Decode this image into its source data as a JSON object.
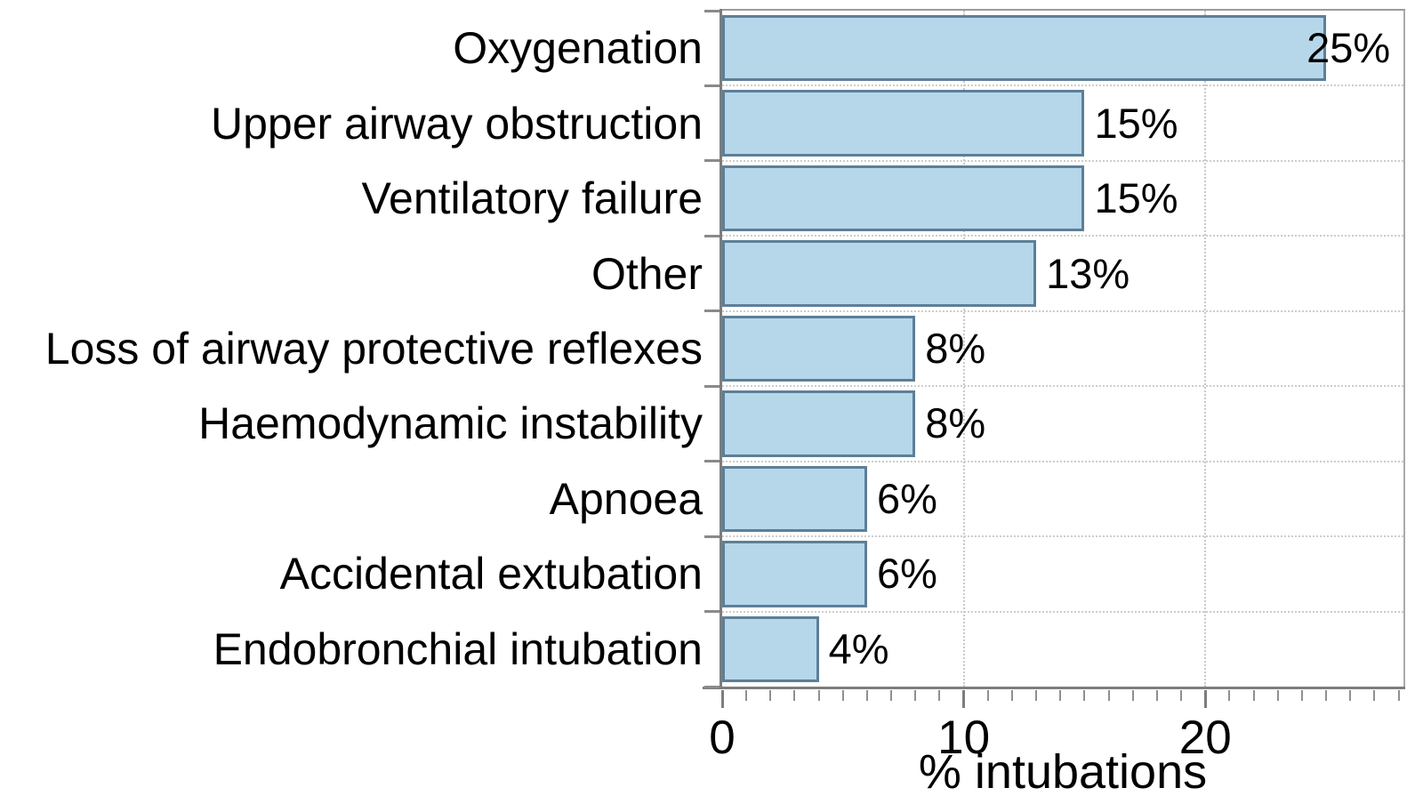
{
  "chart_data": {
    "type": "bar",
    "orientation": "horizontal",
    "title": "",
    "xlabel": "% intubations",
    "ylabel": "",
    "categories": [
      "Oxygenation",
      "Upper airway obstruction",
      "Ventilatory failure",
      "Other",
      "Loss of airway protective reflexes",
      "Haemodynamic instability",
      "Apnoea",
      "Accidental extubation",
      "Endobronchial intubation"
    ],
    "values": [
      25,
      15,
      15,
      13,
      8,
      8,
      6,
      6,
      4
    ],
    "value_labels": [
      "25%",
      "15%",
      "15%",
      "13%",
      "8%",
      "8%",
      "6%",
      "6%",
      "4%"
    ],
    "xlim": [
      0,
      28.2
    ],
    "x_major_ticks": [
      0,
      10,
      20
    ],
    "x_tick_labels": [
      "0",
      "10",
      "20"
    ],
    "x_minor_tick_step": 1,
    "grid": "dotted vertical lines at major ticks; dotted horizontal lines at category boundaries",
    "legend": "none",
    "colors": {
      "bar_fill": "#b6d7e9",
      "bar_border": "#5d7f98",
      "axis": "#7d7d7d",
      "frame": "#9b9b9b",
      "gridline": "#cdcdcd",
      "text": "#000000"
    }
  }
}
